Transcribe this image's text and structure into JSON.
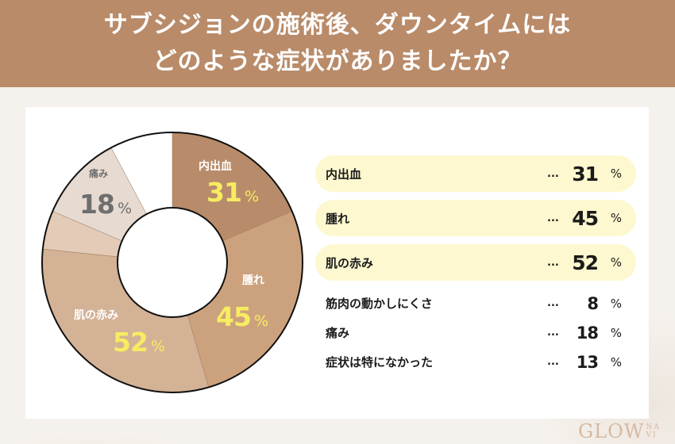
{
  "header": {
    "title_line1": "サブシジョンの施術後、ダウンタイムには",
    "title_line2": "どのような症状がありましたか？"
  },
  "chart_data": {
    "type": "pie",
    "subtype": "donut",
    "title": "サブシジョンの施術後、ダウンタイムにはどのような症状がありましたか？",
    "unit": "%",
    "categories": [
      "内出血",
      "腫れ",
      "肌の赤み",
      "筋肉の動かしにくさ",
      "痛み",
      "症状は特になかった"
    ],
    "values": [
      31,
      45,
      52,
      8,
      18,
      13
    ],
    "colors": [
      "#b88c6a",
      "#cca27e",
      "#d4b296",
      "#e3cbb7",
      "#e6dad1",
      "#ffffff"
    ],
    "legend_position": "right",
    "note": "multiple-answer survey; slices drawn proportional to share of total"
  },
  "donut_labels": [
    {
      "label": "内出血",
      "value": "31",
      "pct": "%"
    },
    {
      "label": "腫れ",
      "value": "45",
      "pct": "%"
    },
    {
      "label": "肌の赤み",
      "value": "52",
      "pct": "%"
    },
    {
      "label": "痛み",
      "value": "18",
      "pct": "%"
    }
  ],
  "legend": {
    "items": [
      {
        "label": "内出血",
        "dots": "...",
        "value": "31",
        "pct": "%",
        "highlight": true
      },
      {
        "label": "腫れ",
        "dots": "...",
        "value": "45",
        "pct": "%",
        "highlight": true
      },
      {
        "label": "肌の赤み",
        "dots": "...",
        "value": "52",
        "pct": "%",
        "highlight": true
      },
      {
        "label": "筋肉の動かしにくさ",
        "dots": "...",
        "value": "8",
        "pct": "%",
        "highlight": false
      },
      {
        "label": "痛み",
        "dots": "...",
        "value": "18",
        "pct": "%",
        "highlight": false
      },
      {
        "label": "症状は特になかった",
        "dots": "...",
        "value": "13",
        "pct": "%",
        "highlight": false
      }
    ]
  },
  "logo": {
    "main": "GLOW",
    "sub_top": "NA",
    "sub_bottom": "VI"
  },
  "colors": {
    "header_bg": "#b98b69",
    "highlight_pill": "#fdf8cf",
    "value_yellow": "#f7ec62"
  }
}
